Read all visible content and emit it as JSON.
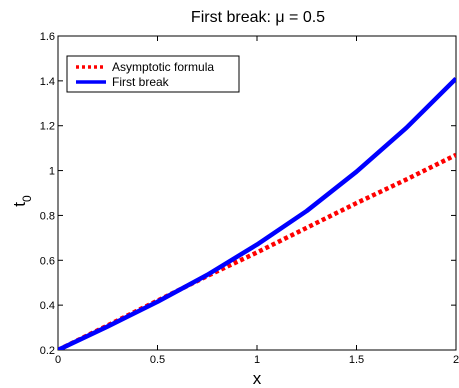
{
  "chart_data": {
    "type": "line",
    "title": "First break: μ = 0.5",
    "xlabel": "x",
    "ylabel_base": "t",
    "ylabel_sub": "0",
    "xlim": [
      0,
      2
    ],
    "ylim": [
      0.2,
      1.6
    ],
    "xticks": [
      0,
      0.5,
      1,
      1.5,
      2
    ],
    "yticks": [
      0.2,
      0.4,
      0.6,
      0.8,
      1,
      1.2,
      1.4,
      1.6
    ],
    "xtick_labels": [
      "0",
      "0.5",
      "1",
      "1.5",
      "2"
    ],
    "ytick_labels": [
      "0.2",
      "0.4",
      "0.6",
      "0.8",
      "1",
      "1.2",
      "1.4",
      "1.6"
    ],
    "grid": false,
    "legend_position": "top-left",
    "series": [
      {
        "name": "Asymptotic formula",
        "color": "#ff0000",
        "style": "dotted",
        "x": [
          0,
          0.25,
          0.5,
          0.75,
          1,
          1.25,
          1.5,
          1.75,
          2
        ],
        "y": [
          0.2,
          0.31,
          0.42,
          0.53,
          0.635,
          0.745,
          0.855,
          0.96,
          1.07
        ]
      },
      {
        "name": "First break",
        "color": "#0000ff",
        "style": "solid",
        "x": [
          0,
          0.25,
          0.5,
          0.75,
          1,
          1.25,
          1.5,
          1.75,
          2
        ],
        "y": [
          0.2,
          0.305,
          0.415,
          0.535,
          0.67,
          0.82,
          0.995,
          1.19,
          1.41
        ]
      }
    ]
  }
}
